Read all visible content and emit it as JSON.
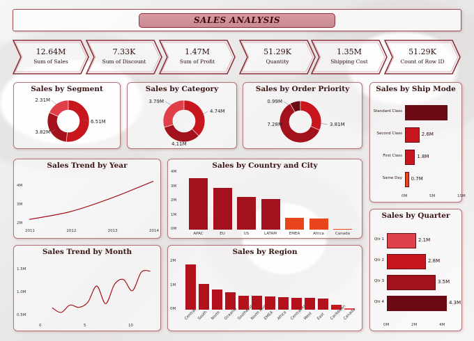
{
  "header": {
    "title": "SALES ANALYSIS"
  },
  "kpis": [
    {
      "value": "12.64M",
      "label": "Sum of Sales"
    },
    {
      "value": "7.33K",
      "label": "Sum of Discount"
    },
    {
      "value": "1.47M",
      "label": "Sum of Profit"
    },
    {
      "value": "51.29K",
      "label": "Quantity"
    },
    {
      "value": "1.35M",
      "label": "Shipping Cost"
    },
    {
      "value": "51.29K",
      "label": "Count of Row ID"
    }
  ],
  "colors": {
    "dark": "#6b0a12",
    "mid": "#a3121c",
    "red": "#c8161f",
    "light": "#e0404a",
    "orange": "#e8451c",
    "border": "#b8737a"
  },
  "chart_data": [
    {
      "id": "segment",
      "type": "pie",
      "title": "Sales by Segment",
      "labels": [
        "2.31M",
        "6.51M",
        "3.82M"
      ],
      "values": [
        2.31,
        6.51,
        3.82
      ]
    },
    {
      "id": "category",
      "type": "pie",
      "title": "Sales by Category",
      "labels": [
        "3.79M",
        "4.74M",
        "4.11M"
      ],
      "values": [
        3.79,
        4.74,
        4.11
      ]
    },
    {
      "id": "priority",
      "type": "pie",
      "title": "Sales by Order Priority",
      "labels": [
        "0.99M",
        "3.81M",
        "7.28M"
      ],
      "values": [
        0.99,
        3.81,
        7.28
      ]
    },
    {
      "id": "shipmode",
      "type": "bar",
      "orientation": "horizontal",
      "title": "Sales by Ship Mode",
      "categories": [
        "Standard Class",
        "Second Class",
        "First Class",
        "Same Day"
      ],
      "values": [
        7.6,
        2.6,
        1.8,
        0.7
      ],
      "data_labels": [
        "",
        "2.6M",
        "1.8M",
        "0.7M"
      ],
      "x_ticks": [
        "0M",
        "5M",
        "10M"
      ],
      "xlim": [
        0,
        10
      ]
    },
    {
      "id": "trend_year",
      "type": "line",
      "title": "Sales Trend by Year",
      "x": [
        2011,
        2012,
        2013,
        2014
      ],
      "y": [
        2.26,
        2.68,
        3.41,
        4.3
      ],
      "x_ticks": [
        "2011",
        "2012",
        "2013",
        "2014"
      ],
      "y_ticks": [
        "2M",
        "3M",
        "4M"
      ],
      "ylim": [
        1.9,
        4.5
      ]
    },
    {
      "id": "country",
      "type": "bar",
      "title": "Sales by Country and City",
      "categories": [
        "APAC",
        "EU",
        "US",
        "LATAM",
        "EMEA",
        "Africa",
        "Canada"
      ],
      "values": [
        3.59,
        2.94,
        2.3,
        2.16,
        0.81,
        0.78,
        0.07
      ],
      "y_ticks": [
        "0M",
        "1M",
        "2M",
        "3M",
        "4M"
      ],
      "ylim": [
        0,
        4
      ]
    },
    {
      "id": "quarter",
      "type": "bar",
      "orientation": "horizontal",
      "title": "Sales by Quarter",
      "categories": [
        "Qtr 1",
        "Qtr 2",
        "Qtr 3",
        "Qtr 4"
      ],
      "values": [
        2.1,
        2.8,
        3.5,
        4.3
      ],
      "data_labels": [
        "2.1M",
        "2.8M",
        "3.5M",
        "4.3M"
      ],
      "x_ticks": [
        "0M",
        "2M",
        "4M"
      ],
      "xlim": [
        0,
        4
      ]
    },
    {
      "id": "trend_month",
      "type": "line",
      "title": "Sales Trend by Month",
      "x": [
        1,
        2,
        3,
        4,
        5,
        6,
        7,
        8,
        9,
        10,
        11,
        12
      ],
      "y": [
        0.68,
        0.58,
        0.74,
        0.69,
        0.8,
        1.15,
        0.77,
        1.19,
        1.29,
        1.05,
        1.45,
        1.47
      ],
      "x_ticks": [
        "0",
        "5",
        "10"
      ],
      "y_ticks": [
        "0.5M",
        "1.0M",
        "1.5M"
      ],
      "ylim": [
        0.4,
        1.6
      ]
    },
    {
      "id": "region",
      "type": "bar",
      "title": "Sales by Region",
      "categories": [
        "Central",
        "South",
        "North",
        "Oceania",
        "Southeast Asia",
        "North Asia",
        "EMEA",
        "Africa",
        "Central Asia",
        "West",
        "East",
        "Caribbean",
        "Canada"
      ],
      "values": [
        2.82,
        1.6,
        1.25,
        1.1,
        0.88,
        0.85,
        0.81,
        0.78,
        0.75,
        0.73,
        0.68,
        0.32,
        0.07
      ],
      "y_ticks": [
        "0M",
        "1M",
        "2M"
      ],
      "ylim": [
        0,
        3
      ]
    }
  ]
}
